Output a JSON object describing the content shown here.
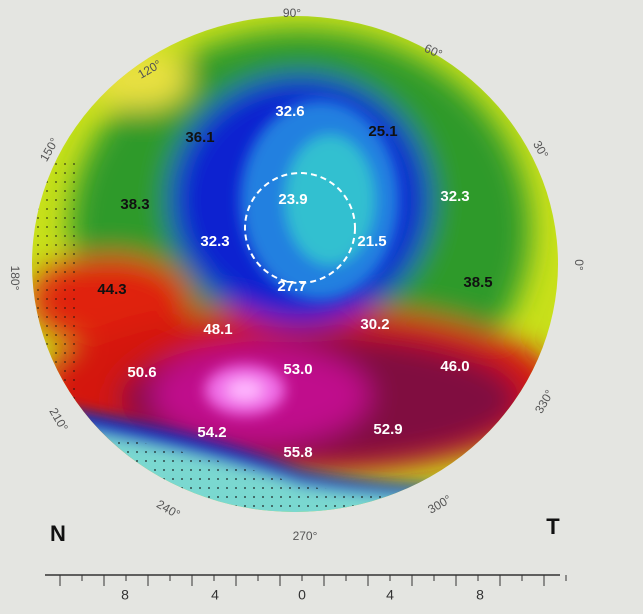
{
  "angle_labels": [
    "90°",
    "60°",
    "30°",
    "0°",
    "330°",
    "300°",
    "270°",
    "240°",
    "210°",
    "180°",
    "150°",
    "120°"
  ],
  "map_labels": [
    "32.6",
    "25.1",
    "36.1",
    "38.3",
    "23.9",
    "32.3",
    "32.3",
    "21.5",
    "27.7",
    "38.5",
    "44.3",
    "48.1",
    "30.2",
    "50.6",
    "53.0",
    "46.0",
    "54.2",
    "52.9",
    "55.8"
  ],
  "sides": [
    "N",
    "T"
  ],
  "scale_labels": [
    "8",
    "4",
    "0",
    "4",
    "8"
  ]
}
